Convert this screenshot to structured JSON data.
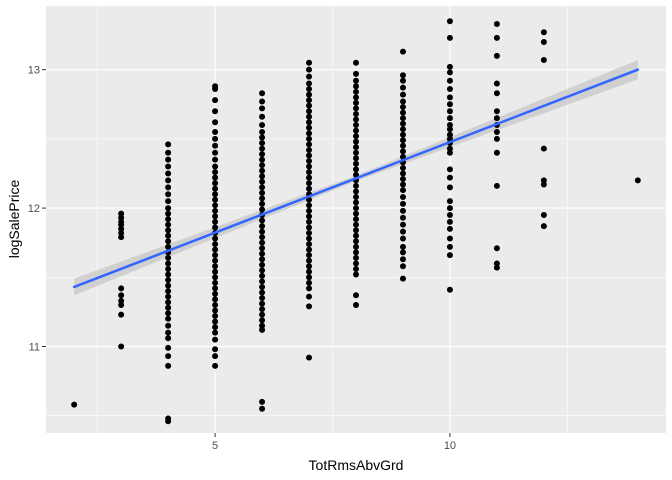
{
  "chart_data": {
    "type": "scatter",
    "xlabel": "TotRmsAbvGrd",
    "ylabel": "logSalePrice",
    "xlim": [
      1.4,
      14.6
    ],
    "ylim": [
      10.375,
      13.46
    ],
    "x_ticks": [
      5,
      10
    ],
    "y_ticks": [
      11,
      12,
      13
    ],
    "grid": true,
    "colors": {
      "points": "#000000",
      "fit_line": "#3366FF",
      "ci_band": "#BEBEBE",
      "panel": "#EBEBEB",
      "grid": "#FFFFFF"
    },
    "fit": {
      "method": "lm",
      "se": true,
      "x_range": [
        2,
        14
      ],
      "y_start": 11.43,
      "y_end": 13.0,
      "ci_halfwidth": [
        0.06,
        0.02,
        0.07
      ]
    },
    "points": [
      {
        "x": 2,
        "y": [
          10.58
        ]
      },
      {
        "x": 3,
        "y": [
          11.0,
          11.23,
          11.3,
          11.33,
          11.37,
          11.42,
          11.79,
          11.82,
          11.85,
          11.88,
          11.9,
          11.93,
          11.96
        ]
      },
      {
        "x": 4,
        "y": [
          10.46,
          10.48,
          10.86,
          10.93,
          10.99,
          11.06,
          11.1,
          11.15,
          11.2,
          11.24,
          11.28,
          11.32,
          11.36,
          11.4,
          11.44,
          11.48,
          11.52,
          11.56,
          11.6,
          11.64,
          11.68,
          11.72,
          11.76,
          11.8,
          11.84,
          11.88,
          11.92,
          11.96,
          12.0,
          12.05,
          12.1,
          12.15,
          12.2,
          12.25,
          12.3,
          12.35,
          12.4,
          12.46
        ]
      },
      {
        "x": 5,
        "y": [
          10.86,
          10.93,
          10.98,
          11.05,
          11.1,
          11.14,
          11.18,
          11.22,
          11.26,
          11.3,
          11.34,
          11.38,
          11.42,
          11.46,
          11.5,
          11.54,
          11.58,
          11.62,
          11.66,
          11.7,
          11.74,
          11.78,
          11.82,
          11.86,
          11.9,
          11.94,
          11.98,
          12.02,
          12.06,
          12.1,
          12.14,
          12.18,
          12.22,
          12.26,
          12.3,
          12.35,
          12.4,
          12.45,
          12.5,
          12.55,
          12.62,
          12.7,
          12.78,
          12.86,
          12.88
        ]
      },
      {
        "x": 6,
        "y": [
          10.55,
          10.6,
          11.12,
          11.15,
          11.19,
          11.23,
          11.27,
          11.31,
          11.35,
          11.39,
          11.43,
          11.47,
          11.51,
          11.55,
          11.59,
          11.63,
          11.67,
          11.71,
          11.75,
          11.79,
          11.83,
          11.87,
          11.91,
          11.95,
          11.99,
          12.03,
          12.07,
          12.11,
          12.15,
          12.19,
          12.23,
          12.27,
          12.31,
          12.35,
          12.39,
          12.43,
          12.47,
          12.51,
          12.55,
          12.6,
          12.66,
          12.72,
          12.77,
          12.83
        ]
      },
      {
        "x": 7,
        "y": [
          10.92,
          11.29,
          11.36,
          11.42,
          11.46,
          11.5,
          11.54,
          11.58,
          11.62,
          11.66,
          11.7,
          11.74,
          11.78,
          11.82,
          11.86,
          11.9,
          11.94,
          11.98,
          12.02,
          12.06,
          12.1,
          12.14,
          12.18,
          12.22,
          12.26,
          12.3,
          12.34,
          12.38,
          12.42,
          12.46,
          12.5,
          12.54,
          12.58,
          12.62,
          12.66,
          12.7,
          12.74,
          12.78,
          12.82,
          12.86,
          12.9,
          12.95,
          13.0,
          13.05
        ]
      },
      {
        "x": 8,
        "y": [
          11.3,
          11.37,
          11.52,
          11.56,
          11.6,
          11.64,
          11.68,
          11.72,
          11.76,
          11.8,
          11.84,
          11.88,
          11.92,
          11.96,
          12.0,
          12.04,
          12.08,
          12.12,
          12.16,
          12.2,
          12.24,
          12.28,
          12.32,
          12.36,
          12.4,
          12.44,
          12.48,
          12.52,
          12.56,
          12.6,
          12.64,
          12.68,
          12.72,
          12.76,
          12.8,
          12.84,
          12.88,
          12.92,
          12.97,
          13.05
        ]
      },
      {
        "x": 9,
        "y": [
          11.49,
          11.58,
          11.63,
          11.68,
          11.72,
          11.78,
          11.83,
          11.88,
          11.93,
          11.98,
          12.03,
          12.08,
          12.13,
          12.17,
          12.21,
          12.25,
          12.29,
          12.33,
          12.37,
          12.41,
          12.45,
          12.49,
          12.53,
          12.57,
          12.61,
          12.65,
          12.69,
          12.73,
          12.77,
          12.82,
          12.87,
          12.92,
          12.96,
          13.13
        ]
      },
      {
        "x": 10,
        "y": [
          11.41,
          11.66,
          11.72,
          11.78,
          11.85,
          11.9,
          11.95,
          12.0,
          12.05,
          12.15,
          12.22,
          12.28,
          12.4,
          12.43,
          12.47,
          12.5,
          12.53,
          12.57,
          12.6,
          12.65,
          12.7,
          12.75,
          12.8,
          12.86,
          12.92,
          12.98,
          13.02,
          13.23,
          13.35
        ]
      },
      {
        "x": 11,
        "y": [
          11.57,
          11.6,
          11.71,
          12.16,
          12.4,
          12.5,
          12.55,
          12.6,
          12.65,
          12.7,
          12.83,
          12.9,
          13.1,
          13.23,
          13.33
        ]
      },
      {
        "x": 12,
        "y": [
          11.87,
          11.95,
          12.17,
          12.2,
          12.43,
          13.07,
          13.2,
          13.27
        ]
      },
      {
        "x": 14,
        "y": [
          12.2
        ]
      }
    ]
  }
}
